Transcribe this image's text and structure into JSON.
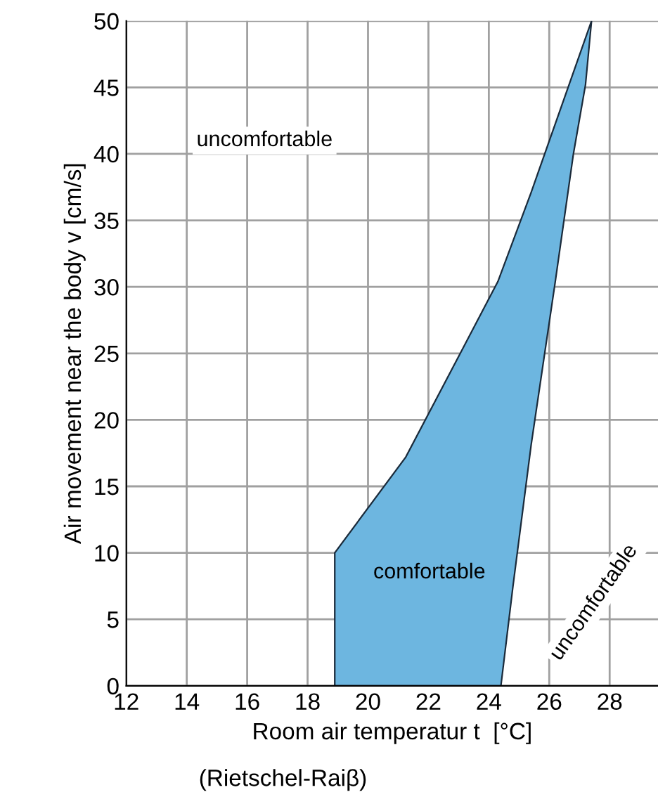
{
  "chart_data": {
    "type": "area",
    "xlabel": "Room air temperatur t  [°C]",
    "ylabel": "Air movement near the body v [cm/s]",
    "series": [
      {
        "color": "#6db6e0",
        "x": [
          18.9,
          18.9,
          21.25,
          23.1,
          24.3,
          25.4,
          27.4,
          27.2,
          26.8,
          26.2,
          25.4,
          24.8,
          24.4
        ],
        "values": [
          0,
          10,
          17.2,
          25.2,
          30.4,
          37.1,
          50,
          45.2,
          40,
          30.4,
          18.1,
          7.5,
          0
        ]
      }
    ],
    "xlim": [
      12,
      29.6
    ],
    "xticks": [
      12,
      14,
      16,
      18,
      20,
      22,
      24,
      26,
      28
    ],
    "ylim": [
      0,
      50
    ],
    "yticks": [
      0,
      5,
      10,
      15,
      20,
      25,
      30,
      35,
      40,
      45,
      50
    ],
    "grid": true,
    "legend": false,
    "annotations": [
      "uncomfortable",
      "comfortable",
      "uncomfortable",
      "(Rietschel-Raiβ)"
    ]
  }
}
